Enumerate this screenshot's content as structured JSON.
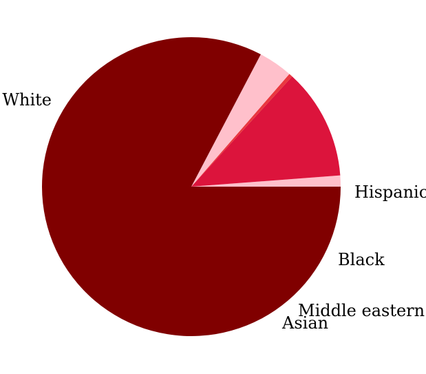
{
  "chart_data": {
    "type": "pie",
    "title": "",
    "slices": [
      {
        "label": "Hispanic",
        "value": 1.2,
        "color": "#ffc0cb"
      },
      {
        "label": "Black",
        "value": 12.0,
        "color": "#dc143c"
      },
      {
        "label": "Middle eastern",
        "value": 0.4,
        "color": "#e9383f"
      },
      {
        "label": "Asian",
        "value": 3.7,
        "color": "#ffc0cb"
      },
      {
        "label": "White",
        "value": 82.7,
        "color": "#800000"
      }
    ],
    "start_angle_deg": 0,
    "direction": "counterclockwise",
    "legend": "none"
  }
}
